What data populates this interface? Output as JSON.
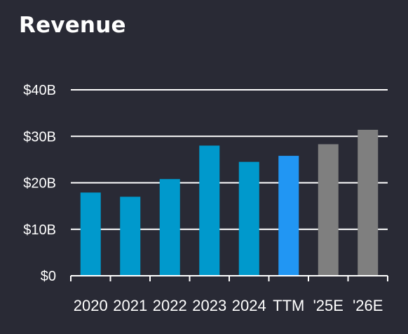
{
  "chart_data": {
    "type": "bar",
    "title": "Revenue",
    "categories": [
      "2020",
      "2021",
      "2022",
      "2023",
      "2024",
      "TTM",
      "'25E",
      "'26E"
    ],
    "values": [
      17.9,
      17.0,
      20.8,
      28.0,
      24.5,
      25.8,
      28.3,
      31.4
    ],
    "bar_kinds": [
      "actual",
      "actual",
      "actual",
      "actual",
      "actual",
      "ttm",
      "estimate",
      "estimate"
    ],
    "colors": {
      "actual": "#0099cc",
      "ttm": "#2196f3",
      "estimate": "#7f7f7f",
      "grid": "#ffffff",
      "background": "#292a35"
    },
    "yticks": [
      0,
      10,
      20,
      30,
      40
    ],
    "ytick_labels": [
      "$0",
      "$10B",
      "$20B",
      "$30B",
      "$40B"
    ],
    "ylim": [
      0,
      40
    ],
    "grid": true,
    "legend": false,
    "xlabel": "",
    "ylabel": ""
  }
}
